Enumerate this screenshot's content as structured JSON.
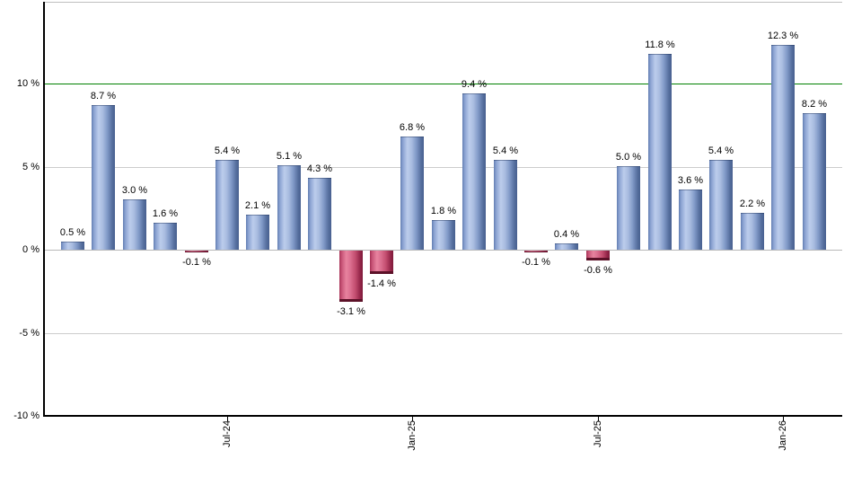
{
  "chart_data": {
    "type": "bar",
    "title": "",
    "xlabel": "",
    "ylabel": "",
    "values": [
      0.5,
      8.7,
      3.0,
      1.6,
      -0.1,
      5.4,
      2.1,
      5.1,
      4.3,
      -3.1,
      -1.4,
      6.8,
      1.8,
      9.4,
      5.4,
      -0.1,
      0.4,
      -0.6,
      5.0,
      11.8,
      3.6,
      5.4,
      2.2,
      12.3,
      8.2
    ],
    "bar_label_format": "{value} %",
    "bar_labels": [
      "0.5 %",
      "8.7 %",
      "3.0 %",
      "1.6 %",
      "-0.1 %",
      "5.4 %",
      "2.1 %",
      "5.1 %",
      "4.3 %",
      "-3.1 %",
      "-1.4 %",
      "6.8 %",
      "1.8 %",
      "9.4 %",
      "5.4 %",
      "-0.1 %",
      "0.4 %",
      "-0.6 %",
      "5.0 %",
      "11.8 %",
      "3.6 %",
      "5.4 %",
      "2.2 %",
      "12.3 %",
      "8.2 %"
    ],
    "x_ticks": [
      {
        "bar_index": 5,
        "label": "Jul-24"
      },
      {
        "bar_index": 11,
        "label": "Jan-25"
      },
      {
        "bar_index": 17,
        "label": "Jul-25"
      },
      {
        "bar_index": 23,
        "label": "Jan-26"
      }
    ],
    "y_ticks": [
      {
        "value": 10,
        "label": "10 %"
      },
      {
        "value": 5,
        "label": "5 %"
      },
      {
        "value": 0,
        "label": "0 %"
      },
      {
        "value": -5,
        "label": "-5 %"
      },
      {
        "value": -10,
        "label": "-10 %"
      }
    ],
    "ylim": [
      -10,
      15
    ],
    "grid": true,
    "legend": "none",
    "reference_line": {
      "value": 10,
      "color": "#008000"
    },
    "colors": {
      "positive_bar": "#7b97c9",
      "negative_bar": "#c54a6e",
      "reference_line": "#008000",
      "gridline": "#cccccc",
      "zero_line": "#b8b8b8",
      "plot_border_top": "#c0c0c0",
      "axis": "#000000",
      "label_text": "#000000",
      "background": "#ffffff"
    }
  }
}
